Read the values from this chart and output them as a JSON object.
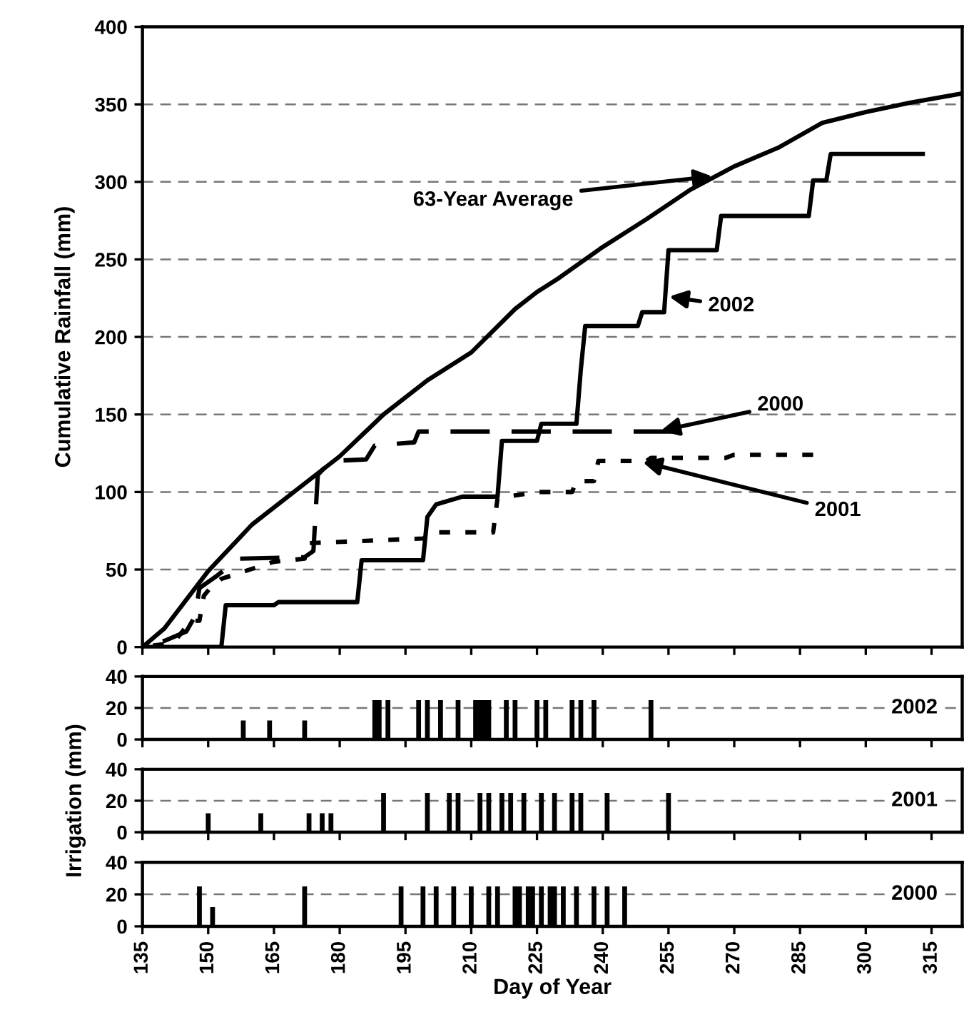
{
  "chart_data": [
    {
      "type": "line",
      "ylabel": "Cumulative Rainfall (mm)",
      "xlim": [
        135,
        322
      ],
      "xticks": [
        135,
        150,
        165,
        180,
        195,
        210,
        225,
        240,
        255,
        270,
        285,
        300,
        315
      ],
      "ylim": [
        0,
        400
      ],
      "yticks": [
        0,
        50,
        100,
        150,
        200,
        250,
        300,
        350,
        400
      ],
      "grid": "y",
      "tick_labels": "y",
      "marker": "none",
      "series": [
        {
          "name": "63-Year Average",
          "color": "#000000",
          "line_style": "solid",
          "x": [
            135,
            140,
            150,
            160,
            170,
            180,
            190,
            200,
            210,
            220,
            225,
            230,
            240,
            250,
            260,
            270,
            280,
            290,
            300,
            310,
            322
          ],
          "values": [
            0,
            12,
            49,
            79,
            101,
            123,
            150,
            172,
            190,
            218,
            229,
            238,
            258,
            276,
            295,
            310,
            322,
            338,
            345,
            351,
            357
          ]
        },
        {
          "name": "2002",
          "color": "#000000",
          "line_style": "solid",
          "x": [
            135,
            153,
            154,
            165,
            166,
            184,
            185,
            199,
            200,
            202,
            208,
            216,
            217,
            225,
            226,
            234,
            235,
            236,
            248,
            249,
            254,
            255,
            266,
            267,
            287,
            288,
            291,
            292,
            313
          ],
          "values": [
            0,
            0,
            27,
            27,
            29,
            29,
            56,
            56,
            84,
            92,
            97,
            97,
            133,
            133,
            144,
            144,
            179,
            207,
            207,
            216,
            216,
            256,
            256,
            278,
            278,
            301,
            301,
            318,
            318
          ]
        },
        {
          "name": "2000",
          "color": "#000000",
          "line_style": "dashed",
          "x": [
            135,
            140,
            145,
            147,
            148,
            152,
            157,
            172,
            174,
            175,
            178,
            186,
            188,
            197,
            198,
            256
          ],
          "values": [
            0,
            4,
            10,
            20,
            38,
            46,
            57,
            58,
            62,
            111,
            120,
            121,
            130,
            132,
            139,
            139
          ]
        },
        {
          "name": "2001",
          "color": "#000000",
          "line_style": "dotted",
          "x": [
            135,
            140,
            143,
            146,
            148,
            149,
            151,
            153,
            165,
            172,
            173,
            199,
            202,
            215,
            216,
            225,
            233,
            234,
            238,
            239,
            250,
            251,
            268,
            270,
            288
          ],
          "values": [
            0,
            2,
            6,
            17,
            17,
            33,
            40,
            44,
            55,
            57,
            67,
            70,
            74,
            74,
            96,
            100,
            100,
            107,
            107,
            120,
            120,
            122,
            122,
            124,
            124
          ]
        }
      ]
    },
    {
      "type": "bar",
      "xlim": [
        135,
        322
      ],
      "xticks": [
        135,
        150,
        165,
        180,
        195,
        210,
        225,
        240,
        255,
        270,
        285,
        300,
        315
      ],
      "ylim": [
        0,
        40
      ],
      "yticks": [
        0,
        20,
        40
      ],
      "grid": "y",
      "tick_labels": "y",
      "series": [
        {
          "name": "2002",
          "color": "#000000",
          "x": [
            158,
            164,
            172,
            188,
            189,
            191,
            198,
            200,
            203,
            207,
            211,
            212,
            213,
            214,
            218,
            220,
            225,
            227,
            233,
            235,
            238,
            251
          ],
          "values": [
            12,
            12,
            12,
            25,
            25,
            25,
            25,
            25,
            25,
            25,
            25,
            25,
            25,
            25,
            25,
            25,
            25,
            25,
            25,
            25,
            25,
            25
          ]
        }
      ]
    },
    {
      "type": "bar",
      "ylabel": "Irrigation (mm)",
      "xlim": [
        135,
        322
      ],
      "xticks": [
        135,
        150,
        165,
        180,
        195,
        210,
        225,
        240,
        255,
        270,
        285,
        300,
        315
      ],
      "ylim": [
        0,
        40
      ],
      "yticks": [
        0,
        20,
        40
      ],
      "grid": "y",
      "tick_labels": "y",
      "series": [
        {
          "name": "2001",
          "color": "#000000",
          "x": [
            150,
            162,
            173,
            176,
            178,
            190,
            200,
            205,
            207,
            212,
            214,
            217,
            219,
            222,
            226,
            229,
            233,
            235,
            241,
            255
          ],
          "values": [
            12,
            12,
            12,
            12,
            12,
            25,
            25,
            25,
            25,
            25,
            25,
            25,
            25,
            25,
            25,
            25,
            25,
            25,
            25,
            25
          ]
        }
      ]
    },
    {
      "type": "bar",
      "xlabel": "Day of Year",
      "xlim": [
        135,
        322
      ],
      "xticks": [
        135,
        150,
        165,
        180,
        195,
        210,
        225,
        240,
        255,
        270,
        285,
        300,
        315
      ],
      "ylim": [
        0,
        40
      ],
      "yticks": [
        0,
        20,
        40
      ],
      "grid": "y",
      "series": [
        {
          "name": "2000",
          "color": "#000000",
          "x": [
            148,
            151,
            172,
            194,
            199,
            202,
            206,
            210,
            214,
            216,
            220,
            221,
            223,
            224,
            226,
            228,
            229,
            231,
            234,
            238,
            241,
            245
          ],
          "values": [
            25,
            12,
            25,
            25,
            25,
            25,
            25,
            25,
            25,
            25,
            25,
            25,
            25,
            25,
            25,
            25,
            25,
            25,
            25,
            25,
            25,
            25
          ]
        }
      ]
    }
  ]
}
